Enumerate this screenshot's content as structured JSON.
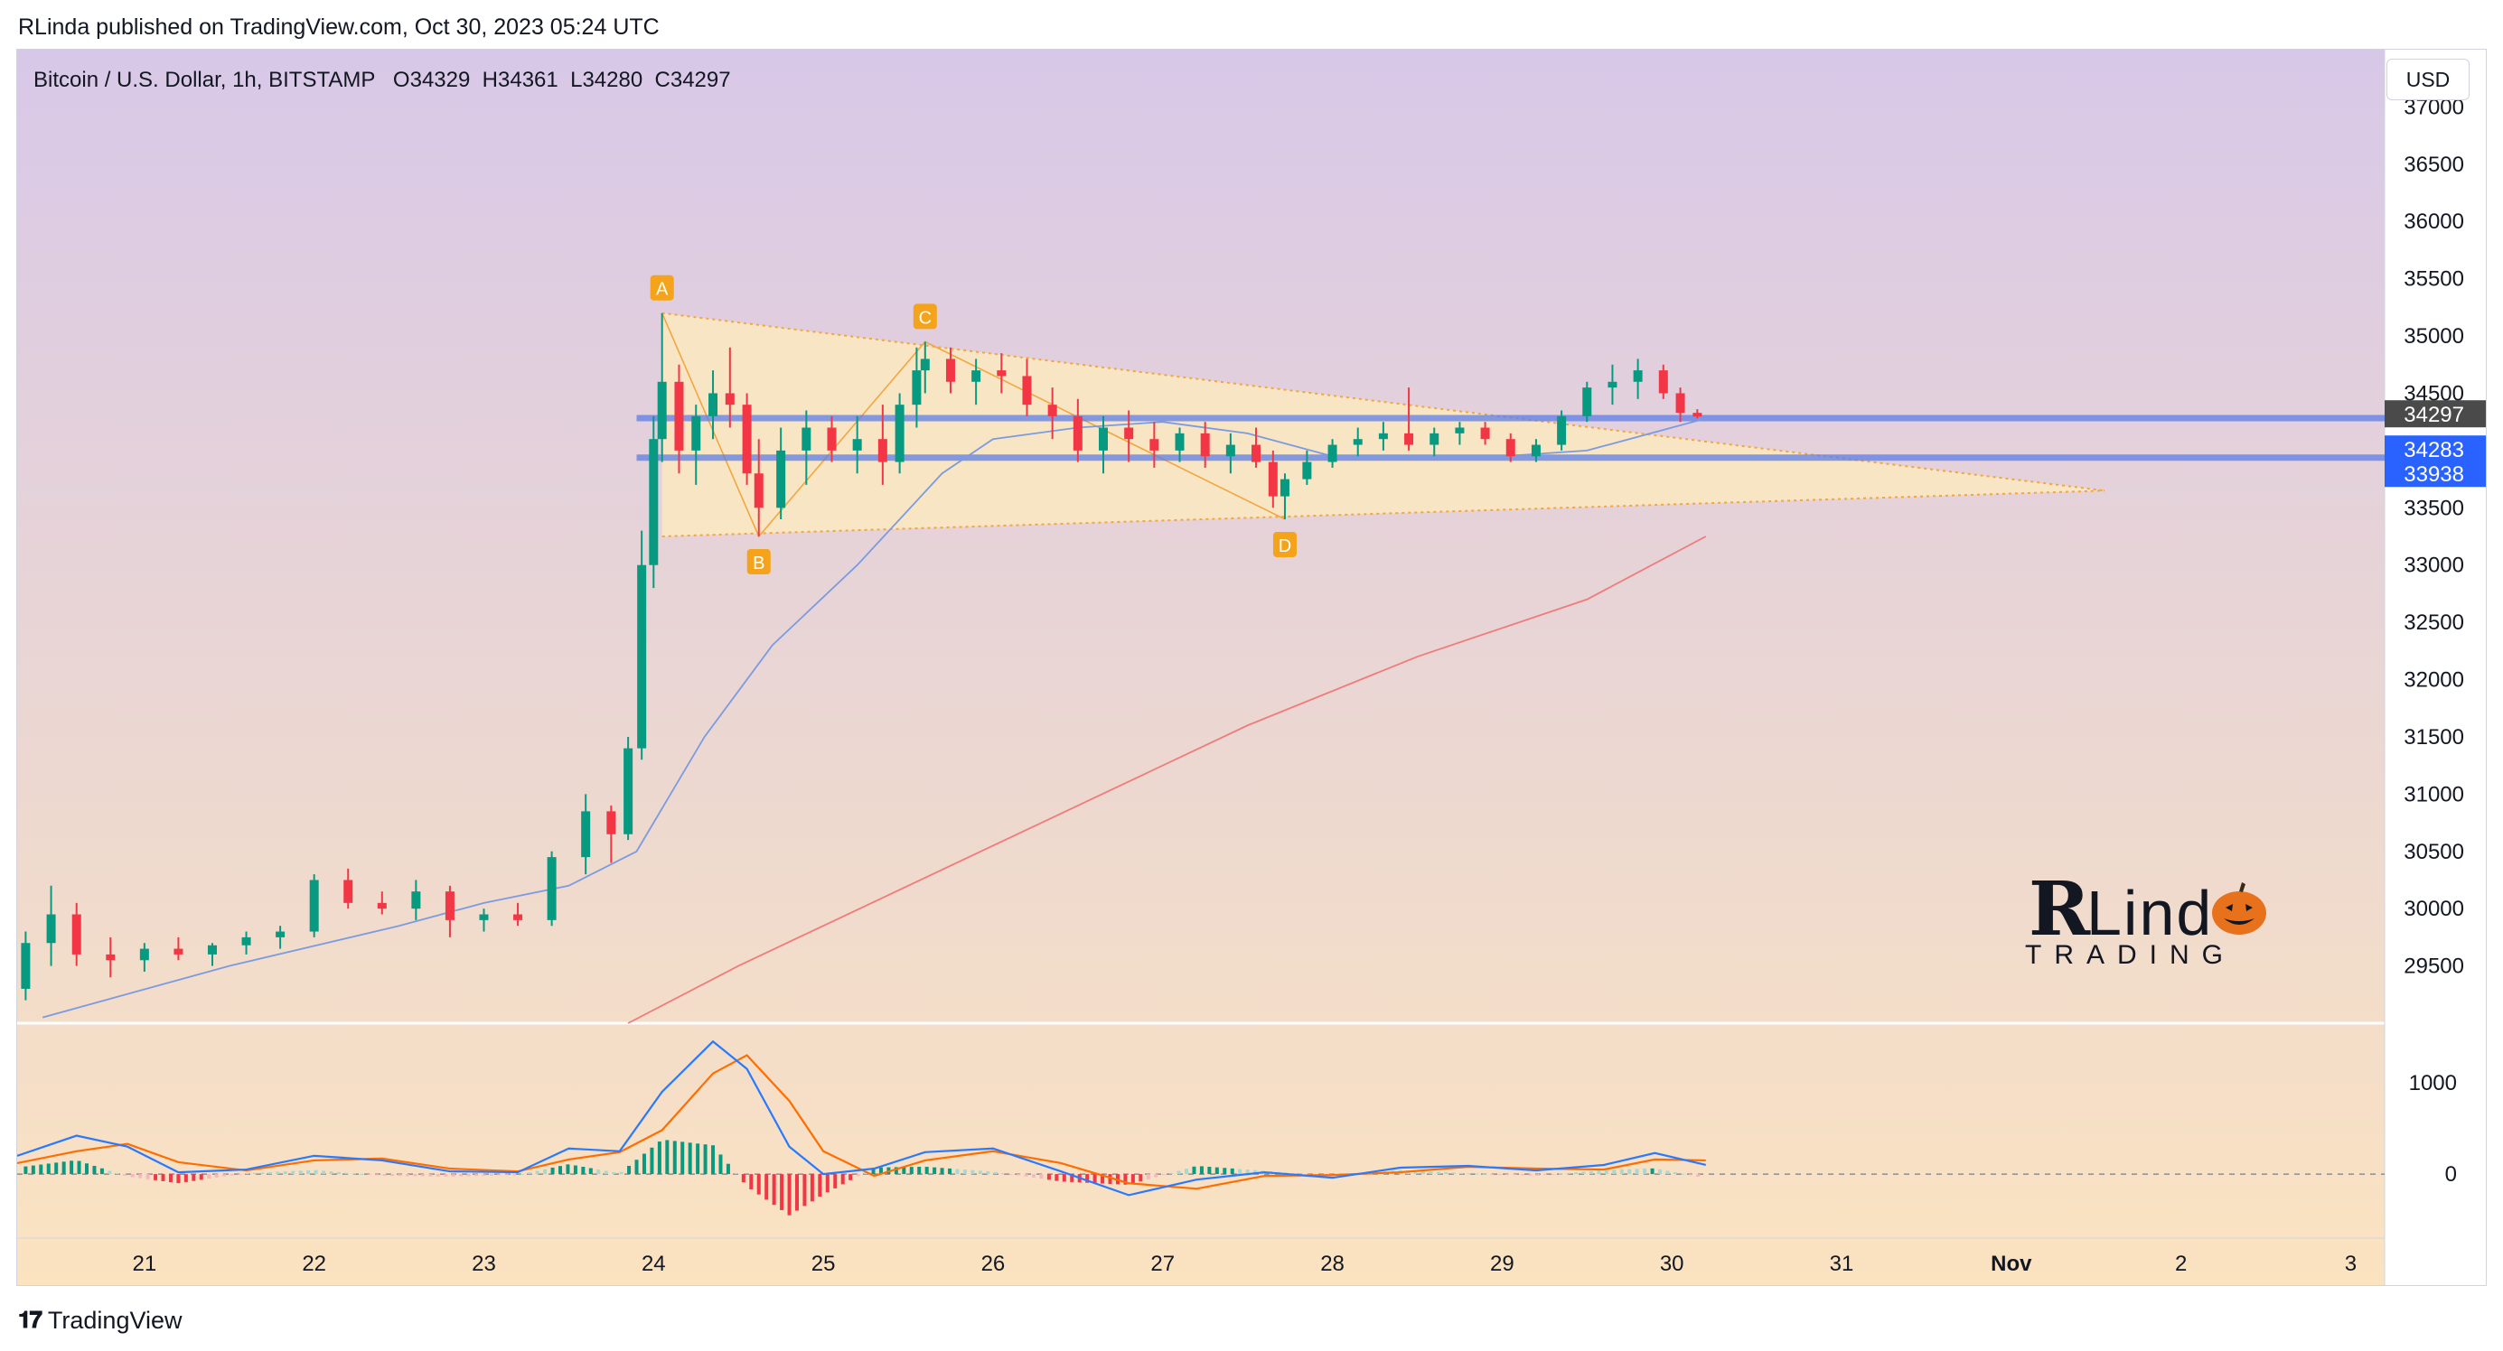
{
  "header": {
    "publisher_line": "RLinda published on TradingView.com, Oct 30, 2023 05:24 UTC"
  },
  "symbol": {
    "name": "Bitcoin / U.S. Dollar, 1h, BITSTAMP",
    "ohlc": {
      "open": "O34329",
      "high": "H34361",
      "low": "L34280",
      "close": "C34297"
    }
  },
  "currency_button": "USD",
  "footer": {
    "brand": "TradingView"
  },
  "watermark": {
    "name": "RLindo",
    "sub": "TRADING"
  },
  "colors": {
    "bg_top": "#d8c8e8",
    "bg_bottom": "#fbe3c0",
    "up": "#089981",
    "down": "#f23645",
    "ma_fast": "#7b9be0",
    "ma_slow": "#f07b7b",
    "band": "#5c7de8",
    "triangle": "#f2a640",
    "macd": "#2979ff",
    "signal": "#ff6d00"
  },
  "chart_data": [
    {
      "type": "candlestick",
      "title": "Bitcoin / U.S. Dollar, 1h, BITSTAMP",
      "x_tick_labels": [
        "21",
        "22",
        "23",
        "24",
        "25",
        "26",
        "27",
        "28",
        "29",
        "30",
        "31",
        "Nov",
        "2",
        "3"
      ],
      "x_range_days": [
        20.25,
        3.2
      ],
      "y_ticks": [
        29500,
        30000,
        30500,
        31000,
        31500,
        32000,
        32500,
        33000,
        33500,
        34000,
        34500,
        35000,
        35500,
        36000,
        36500,
        37000
      ],
      "ylim": [
        29000,
        37500
      ],
      "price_labels": [
        {
          "value": "34297",
          "style": "last"
        },
        {
          "value": "34283",
          "style": "band"
        },
        {
          "value": "33938",
          "style": "band"
        }
      ],
      "horizontal_levels": [
        34283,
        33938
      ],
      "patterns": [
        {
          "label": "A",
          "day": 24.05,
          "price": 35200
        },
        {
          "label": "B",
          "day": 24.62,
          "price": 33250
        },
        {
          "label": "C",
          "day": 25.6,
          "price": 34950
        },
        {
          "label": "D",
          "day": 27.72,
          "price": 33400
        }
      ],
      "triangle": {
        "upper": [
          [
            24.05,
            35200
          ],
          [
            32.55,
            33650
          ]
        ],
        "lower": [
          [
            24.05,
            33250
          ],
          [
            32.55,
            33650
          ]
        ]
      },
      "moving_averages": [
        {
          "name": "fast",
          "points": [
            [
              20.4,
              29050
            ],
            [
              21.5,
              29500
            ],
            [
              22.5,
              29850
            ],
            [
              23.0,
              30050
            ],
            [
              23.5,
              30200
            ],
            [
              23.9,
              30500
            ],
            [
              24.3,
              31500
            ],
            [
              24.7,
              32300
            ],
            [
              25.2,
              33000
            ],
            [
              25.7,
              33800
            ],
            [
              26.0,
              34100
            ],
            [
              26.5,
              34200
            ],
            [
              27.0,
              34250
            ],
            [
              27.5,
              34150
            ],
            [
              28.0,
              33950
            ],
            [
              28.5,
              33950
            ],
            [
              29.0,
              33950
            ],
            [
              29.5,
              34000
            ],
            [
              30.0,
              34200
            ],
            [
              30.2,
              34280
            ]
          ]
        },
        {
          "name": "slow",
          "points": [
            [
              23.85,
              29000
            ],
            [
              24.5,
              29500
            ],
            [
              25.5,
              30200
            ],
            [
              26.5,
              30900
            ],
            [
              27.5,
              31600
            ],
            [
              28.5,
              32200
            ],
            [
              29.5,
              32700
            ],
            [
              30.2,
              33250
            ]
          ]
        }
      ],
      "candles_ohlc_by_day": [
        [
          20.3,
          29300,
          29800,
          29200,
          29700
        ],
        [
          20.45,
          29700,
          30200,
          29500,
          29950
        ],
        [
          20.6,
          29950,
          30050,
          29500,
          29600
        ],
        [
          20.8,
          29600,
          29750,
          29400,
          29550
        ],
        [
          21.0,
          29550,
          29700,
          29450,
          29650
        ],
        [
          21.2,
          29650,
          29750,
          29550,
          29600
        ],
        [
          21.4,
          29600,
          29700,
          29500,
          29680
        ],
        [
          21.6,
          29680,
          29800,
          29600,
          29750
        ],
        [
          21.8,
          29750,
          29850,
          29650,
          29800
        ],
        [
          22.0,
          29800,
          30300,
          29750,
          30250
        ],
        [
          22.2,
          30250,
          30350,
          30000,
          30050
        ],
        [
          22.4,
          30050,
          30150,
          29950,
          30000
        ],
        [
          22.6,
          30000,
          30250,
          29900,
          30150
        ],
        [
          22.8,
          30150,
          30200,
          29750,
          29900
        ],
        [
          23.0,
          29900,
          30000,
          29800,
          29950
        ],
        [
          23.2,
          29950,
          30050,
          29850,
          29900
        ],
        [
          23.4,
          29900,
          30500,
          29850,
          30450
        ],
        [
          23.6,
          30450,
          31000,
          30300,
          30850
        ],
        [
          23.75,
          30850,
          30900,
          30400,
          30650
        ],
        [
          23.85,
          30650,
          31500,
          30600,
          31400
        ],
        [
          23.93,
          31400,
          33300,
          31300,
          33000
        ],
        [
          24.0,
          33000,
          34300,
          32800,
          34100
        ],
        [
          24.05,
          34100,
          35200,
          33900,
          34600
        ],
        [
          24.15,
          34600,
          34750,
          33800,
          34000
        ],
        [
          24.25,
          34000,
          34400,
          33700,
          34300
        ],
        [
          24.35,
          34300,
          34700,
          34100,
          34500
        ],
        [
          24.45,
          34500,
          34900,
          34200,
          34400
        ],
        [
          24.55,
          34400,
          34500,
          33700,
          33800
        ],
        [
          24.62,
          33800,
          34100,
          33250,
          33500
        ],
        [
          24.75,
          33500,
          34200,
          33400,
          34000
        ],
        [
          24.9,
          34000,
          34350,
          33700,
          34200
        ],
        [
          25.05,
          34200,
          34300,
          33900,
          34000
        ],
        [
          25.2,
          34000,
          34300,
          33800,
          34100
        ],
        [
          25.35,
          34100,
          34400,
          33700,
          33900
        ],
        [
          25.45,
          33900,
          34500,
          33800,
          34400
        ],
        [
          25.55,
          34400,
          34900,
          34200,
          34700
        ],
        [
          25.6,
          34700,
          34950,
          34500,
          34800
        ],
        [
          25.75,
          34800,
          34900,
          34500,
          34600
        ],
        [
          25.9,
          34600,
          34800,
          34400,
          34700
        ],
        [
          26.05,
          34700,
          34850,
          34500,
          34650
        ],
        [
          26.2,
          34650,
          34800,
          34300,
          34400
        ],
        [
          26.35,
          34400,
          34550,
          34100,
          34300
        ],
        [
          26.5,
          34300,
          34450,
          33900,
          34000
        ],
        [
          26.65,
          34000,
          34300,
          33800,
          34200
        ],
        [
          26.8,
          34200,
          34350,
          33900,
          34100
        ],
        [
          26.95,
          34100,
          34250,
          33850,
          34000
        ],
        [
          27.1,
          34000,
          34200,
          33900,
          34150
        ],
        [
          27.25,
          34150,
          34250,
          33850,
          33950
        ],
        [
          27.4,
          33950,
          34150,
          33800,
          34050
        ],
        [
          27.55,
          34050,
          34200,
          33850,
          33900
        ],
        [
          27.65,
          33900,
          34000,
          33500,
          33600
        ],
        [
          27.72,
          33600,
          33800,
          33400,
          33750
        ],
        [
          27.85,
          33750,
          34000,
          33700,
          33900
        ],
        [
          28.0,
          33900,
          34100,
          33850,
          34050
        ],
        [
          28.15,
          34050,
          34200,
          33950,
          34100
        ],
        [
          28.3,
          34100,
          34250,
          34000,
          34150
        ],
        [
          28.45,
          34150,
          34550,
          34000,
          34050
        ],
        [
          28.6,
          34050,
          34200,
          33950,
          34150
        ],
        [
          28.75,
          34150,
          34250,
          34050,
          34200
        ],
        [
          28.9,
          34200,
          34250,
          34050,
          34100
        ],
        [
          29.05,
          34100,
          34150,
          33900,
          33950
        ],
        [
          29.2,
          33950,
          34100,
          33900,
          34050
        ],
        [
          29.35,
          34050,
          34350,
          34000,
          34300
        ],
        [
          29.5,
          34300,
          34600,
          34250,
          34550
        ],
        [
          29.65,
          34550,
          34750,
          34400,
          34600
        ],
        [
          29.8,
          34600,
          34800,
          34450,
          34700
        ],
        [
          29.95,
          34700,
          34750,
          34450,
          34500
        ],
        [
          30.05,
          34500,
          34550,
          34250,
          34329
        ],
        [
          30.15,
          34329,
          34361,
          34280,
          34297
        ]
      ]
    },
    {
      "type": "line",
      "title": "",
      "y_ticks": [
        0,
        1000
      ],
      "ylim": [
        -700,
        1650
      ],
      "series": [
        {
          "points": [
            [
              20.25,
              200
            ],
            [
              20.6,
              420
            ],
            [
              20.9,
              300
            ],
            [
              21.2,
              20
            ],
            [
              21.6,
              50
            ],
            [
              22.0,
              200
            ],
            [
              22.4,
              150
            ],
            [
              22.8,
              30
            ],
            [
              23.2,
              20
            ],
            [
              23.5,
              280
            ],
            [
              23.8,
              250
            ],
            [
              24.05,
              900
            ],
            [
              24.35,
              1450
            ],
            [
              24.55,
              1150
            ],
            [
              24.8,
              300
            ],
            [
              25.0,
              0
            ],
            [
              25.3,
              60
            ],
            [
              25.6,
              240
            ],
            [
              26.0,
              280
            ],
            [
              26.4,
              30
            ],
            [
              26.8,
              -230
            ],
            [
              27.2,
              -60
            ],
            [
              27.6,
              20
            ],
            [
              28.0,
              -40
            ],
            [
              28.4,
              70
            ],
            [
              28.8,
              90
            ],
            [
              29.2,
              40
            ],
            [
              29.6,
              100
            ],
            [
              29.9,
              230
            ],
            [
              30.2,
              100
            ]
          ]
        },
        {
          "points": [
            [
              20.25,
              120
            ],
            [
              20.6,
              250
            ],
            [
              20.9,
              330
            ],
            [
              21.2,
              130
            ],
            [
              21.6,
              40
            ],
            [
              22.0,
              150
            ],
            [
              22.4,
              170
            ],
            [
              22.8,
              60
            ],
            [
              23.2,
              30
            ],
            [
              23.5,
              160
            ],
            [
              23.8,
              240
            ],
            [
              24.05,
              480
            ],
            [
              24.35,
              1100
            ],
            [
              24.55,
              1300
            ],
            [
              24.8,
              800
            ],
            [
              25.0,
              250
            ],
            [
              25.3,
              -20
            ],
            [
              25.6,
              150
            ],
            [
              26.0,
              250
            ],
            [
              26.4,
              120
            ],
            [
              26.8,
              -100
            ],
            [
              27.2,
              -160
            ],
            [
              27.6,
              -20
            ],
            [
              28.0,
              -10
            ],
            [
              28.4,
              20
            ],
            [
              28.8,
              80
            ],
            [
              29.2,
              60
            ],
            [
              29.6,
              50
            ],
            [
              29.9,
              160
            ],
            [
              30.2,
              150
            ]
          ]
        }
      ]
    }
  ]
}
